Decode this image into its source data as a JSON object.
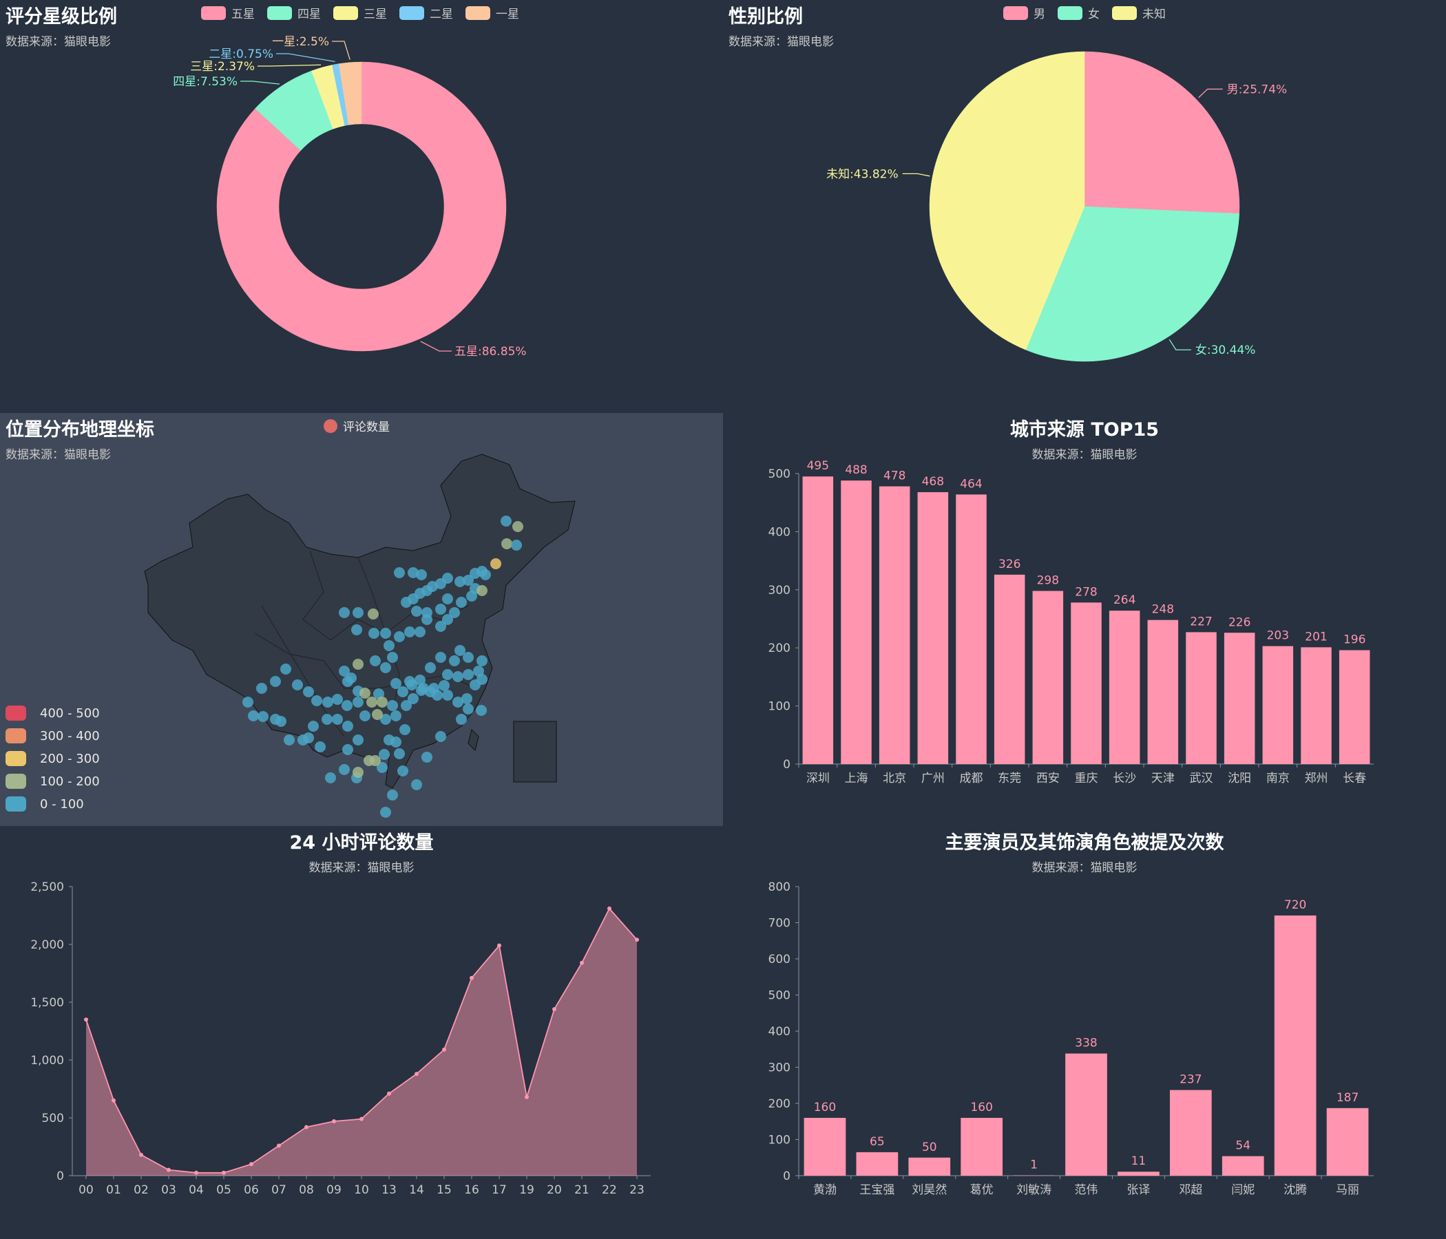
{
  "panels": {
    "rating": {
      "title": "评分星级比例",
      "subtitle": "数据来源：猫眼电影",
      "chart_data": {
        "type": "pie",
        "variant": "donut",
        "title": "评分星级比例",
        "legend": "top",
        "slices": [
          {
            "name": "五星",
            "value": 86.85,
            "label": "五星:86.85%",
            "color": "#ff95ae"
          },
          {
            "name": "四星",
            "value": 7.53,
            "label": "四星:7.53%",
            "color": "#84f5cd"
          },
          {
            "name": "三星",
            "value": 2.37,
            "label": "三星:2.37%",
            "color": "#f8f496"
          },
          {
            "name": "二星",
            "value": 0.75,
            "label": "二星:0.75%",
            "color": "#7dcdf7"
          },
          {
            "name": "一星",
            "value": 2.5,
            "label": "一星:2.5%",
            "color": "#fcc79e"
          }
        ]
      }
    },
    "gender": {
      "title": "性别比例",
      "subtitle": "数据来源：猫眼电影",
      "chart_data": {
        "type": "pie",
        "title": "性别比例",
        "legend": "top",
        "slices": [
          {
            "name": "男",
            "value": 25.74,
            "label": "男:25.74%",
            "color": "#ff95ae"
          },
          {
            "name": "女",
            "value": 30.44,
            "label": "女:30.44%",
            "color": "#84f5cd"
          },
          {
            "name": "未知",
            "value": 43.82,
            "label": "未知:43.82%",
            "color": "#f8f496"
          }
        ]
      }
    },
    "map": {
      "title": "位置分布地理坐标",
      "subtitle": "数据来源：猫眼电影",
      "legend_label": "评论数量",
      "legend_color": "#dd6b66",
      "ranges": [
        {
          "label": "400 - 500",
          "color": "#dd4a5e"
        },
        {
          "label": "300 - 400",
          "color": "#e78f69"
        },
        {
          "label": "200 - 300",
          "color": "#ecc66c"
        },
        {
          "label": "100 - 200",
          "color": "#a2b78d"
        },
        {
          "label": "0 - 100",
          "color": "#4ba6c6"
        }
      ]
    },
    "cities": {
      "title": "城市来源 TOP15",
      "subtitle": "数据来源：猫眼电影",
      "chart_data": {
        "type": "bar",
        "title": "城市来源 TOP15",
        "categories": [
          "深圳",
          "上海",
          "北京",
          "广州",
          "成都",
          "东莞",
          "西安",
          "重庆",
          "长沙",
          "天津",
          "武汉",
          "沈阳",
          "南京",
          "郑州",
          "长春"
        ],
        "values": [
          495,
          488,
          478,
          468,
          464,
          326,
          298,
          278,
          264,
          248,
          227,
          226,
          203,
          201,
          196
        ],
        "ylim": [
          0,
          500
        ],
        "yticks": [
          "0",
          "100",
          "200",
          "300",
          "400",
          "500"
        ],
        "grid": false,
        "color": "#ff95ae"
      }
    },
    "hourly": {
      "title": "24 小时评论数量",
      "subtitle": "数据来源：猫眼电影",
      "chart_data": {
        "type": "area",
        "title": "24 小时评论数量",
        "categories": [
          "00",
          "01",
          "02",
          "03",
          "04",
          "05",
          "06",
          "07",
          "08",
          "09",
          "10",
          "13",
          "14",
          "15",
          "16",
          "17",
          "19",
          "20",
          "21",
          "22",
          "23"
        ],
        "values": [
          1350,
          650,
          180,
          50,
          25,
          25,
          100,
          260,
          420,
          470,
          490,
          710,
          880,
          1090,
          1710,
          1990,
          680,
          1440,
          1840,
          2310,
          2040
        ],
        "ylim": [
          0,
          2500
        ],
        "yticks": [
          "0",
          "500",
          "1,000",
          "1,500",
          "2,000",
          "2,500"
        ],
        "grid": false,
        "color": "#ff95ae"
      }
    },
    "actors": {
      "title": "主要演员及其饰演角色被提及次数",
      "subtitle": "数据来源：猫眼电影",
      "chart_data": {
        "type": "bar",
        "title": "主要演员及其饰演角色被提及次数",
        "categories": [
          "黄渤",
          "王宝强",
          "刘昊然",
          "葛优",
          "刘敏涛",
          "范伟",
          "张译",
          "邓超",
          "闫妮",
          "沈腾",
          "马丽"
        ],
        "values": [
          160,
          65,
          50,
          160,
          1,
          338,
          11,
          237,
          54,
          720,
          187
        ],
        "ylim": [
          0,
          800
        ],
        "yticks": [
          "0",
          "100",
          "200",
          "300",
          "400",
          "500",
          "600",
          "700",
          "800"
        ],
        "grid": false,
        "color": "#ff95ae"
      }
    }
  }
}
